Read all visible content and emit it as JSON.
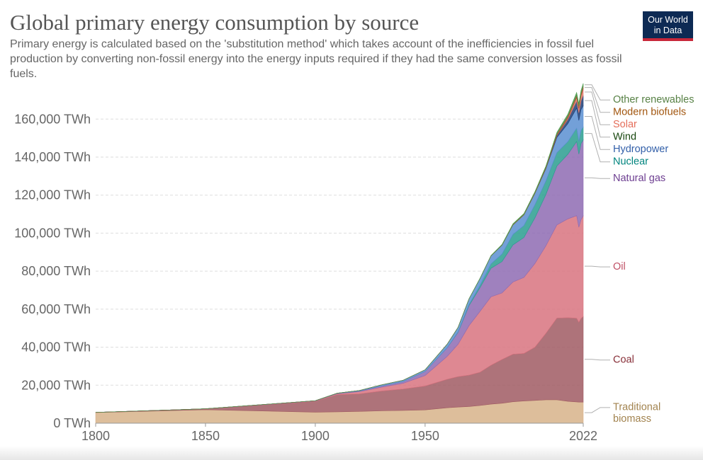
{
  "title": "Global primary energy consumption by source",
  "subtitle": "Primary energy is calculated based on the 'substitution method' which takes account of the inefficiencies in fossil fuel production by converting non-fossil energy into the energy inputs required if they had the same conversion losses as fossil fuels.",
  "logo": {
    "line1": "Our World",
    "line2": "in Data"
  },
  "chart_data": {
    "type": "area",
    "stacked": true,
    "title": "Global primary energy consumption by source",
    "xlabel": "",
    "ylabel": "",
    "xlim": [
      1800,
      2022
    ],
    "ylim": [
      0,
      175000
    ],
    "grid": "horizontal dashed",
    "legend_placement": "right (labels at series ends)",
    "yticks": [
      {
        "value": 0,
        "label": "0 TWh"
      },
      {
        "value": 20000,
        "label": "20,000 TWh"
      },
      {
        "value": 40000,
        "label": "40,000 TWh"
      },
      {
        "value": 60000,
        "label": "60,000 TWh"
      },
      {
        "value": 80000,
        "label": "80,000 TWh"
      },
      {
        "value": 100000,
        "label": "100,000 TWh"
      },
      {
        "value": 120000,
        "label": "120,000 TWh"
      },
      {
        "value": 140000,
        "label": "140,000 TWh"
      },
      {
        "value": 160000,
        "label": "160,000 TWh"
      }
    ],
    "xticks": [
      {
        "value": 1800,
        "label": "1800"
      },
      {
        "value": 1850,
        "label": "1850"
      },
      {
        "value": 1900,
        "label": "1900"
      },
      {
        "value": 1950,
        "label": "1950"
      },
      {
        "value": 2022,
        "label": "2022"
      }
    ],
    "x": [
      1800,
      1850,
      1900,
      1910,
      1920,
      1930,
      1940,
      1950,
      1960,
      1965,
      1970,
      1975,
      1980,
      1985,
      1990,
      1995,
      2000,
      2005,
      2010,
      2015,
      2019,
      2020,
      2021,
      2022
    ],
    "series": [
      {
        "name": "Traditional biomass",
        "color": "#d7b38a",
        "label_color": "#a2834f",
        "values": [
          5600,
          7100,
          5800,
          6000,
          6200,
          6500,
          6700,
          7000,
          8100,
          8500,
          8800,
          9300,
          10000,
          10500,
          11300,
          11700,
          12000,
          12300,
          12300,
          11500,
          11200,
          11100,
          11100,
          11100
        ]
      },
      {
        "name": "Coal",
        "color": "#a05a63",
        "label_color": "#883039",
        "values": [
          100,
          500,
          5700,
          9000,
          9200,
          10400,
          11300,
          12600,
          15000,
          16000,
          16500,
          17500,
          20500,
          23000,
          25000,
          25000,
          28000,
          35000,
          43000,
          44000,
          44000,
          42000,
          44000,
          45000
        ]
      },
      {
        "name": "Oil",
        "color": "#d8737f",
        "label_color": "#c05066",
        "values": [
          0,
          0,
          200,
          500,
          1200,
          2000,
          3000,
          5500,
          12000,
          17000,
          26000,
          32000,
          36000,
          35000,
          38000,
          40000,
          44000,
          46000,
          49000,
          52000,
          54000,
          50000,
          52000,
          53000
        ]
      },
      {
        "name": "Natural gas",
        "color": "#8e6bb3",
        "label_color": "#6d3e91",
        "values": [
          0,
          0,
          100,
          200,
          300,
          700,
          900,
          2100,
          4500,
          6300,
          10500,
          12500,
          15000,
          16500,
          19500,
          21000,
          24000,
          27000,
          31000,
          34000,
          39000,
          38500,
          40000,
          40000
        ]
      },
      {
        "name": "Nuclear",
        "color": "#2a9d8f",
        "label_color": "#00847e",
        "values": [
          0,
          0,
          0,
          0,
          0,
          0,
          0,
          0,
          100,
          250,
          600,
          1200,
          2300,
          4000,
          5500,
          6300,
          6900,
          7100,
          7000,
          6600,
          7000,
          6700,
          6900,
          6700
        ]
      },
      {
        "name": "Hydropower",
        "color": "#5b8fd1",
        "label_color": "#3360a9",
        "values": [
          0,
          0,
          50,
          100,
          300,
          550,
          700,
          900,
          1800,
          2400,
          3000,
          3600,
          4200,
          4600,
          5000,
          5600,
          6000,
          6500,
          8000,
          9500,
          10600,
          11000,
          11000,
          11200
        ]
      },
      {
        "name": "Wind",
        "color": "#1f3f77",
        "label_color": "#18470f",
        "values": [
          0,
          0,
          0,
          0,
          0,
          0,
          0,
          0,
          0,
          0,
          0,
          0,
          0,
          0,
          10,
          30,
          80,
          300,
          900,
          2200,
          3700,
          4000,
          4600,
          5500
        ]
      },
      {
        "name": "Solar",
        "color": "#e0796a",
        "label_color": "#e56e5a",
        "values": [
          0,
          0,
          0,
          0,
          0,
          0,
          0,
          0,
          0,
          0,
          0,
          0,
          0,
          0,
          0,
          0,
          0,
          10,
          100,
          700,
          1900,
          2300,
          2800,
          3500
        ]
      },
      {
        "name": "Modern biofuels",
        "color": "#a0522d",
        "label_color": "#a2560f",
        "values": [
          0,
          0,
          0,
          0,
          0,
          0,
          0,
          0,
          0,
          0,
          0,
          0,
          50,
          100,
          200,
          250,
          300,
          500,
          900,
          1100,
          1300,
          1250,
          1300,
          1300
        ]
      },
      {
        "name": "Other renewables",
        "color": "#4c9a4c",
        "label_color": "#578145",
        "values": [
          0,
          0,
          0,
          0,
          0,
          0,
          0,
          0,
          30,
          50,
          100,
          150,
          200,
          300,
          400,
          450,
          500,
          600,
          800,
          1000,
          1300,
          1350,
          1400,
          1500
        ]
      }
    ]
  }
}
